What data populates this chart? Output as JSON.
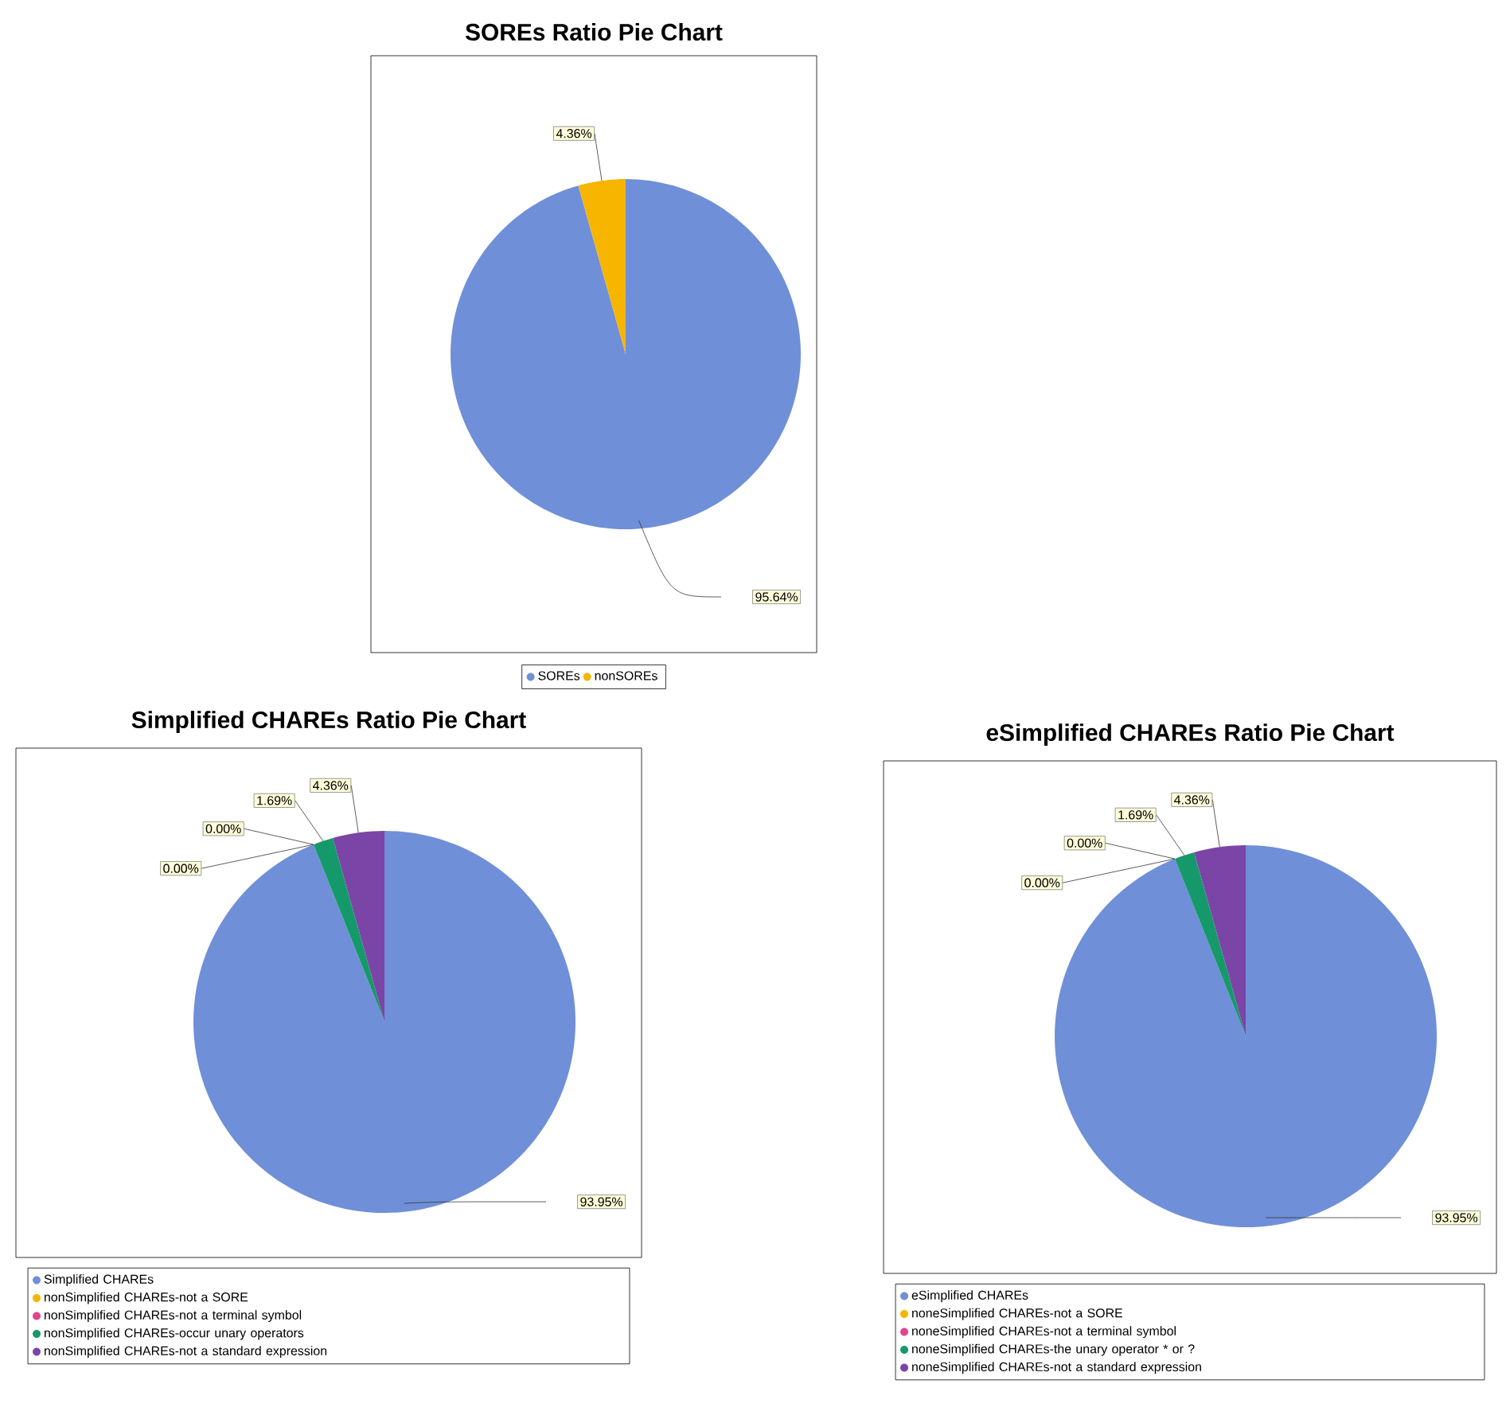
{
  "chart_data": [
    {
      "type": "pie",
      "title": "SOREs Ratio Pie Chart",
      "categories": [
        "SOREs",
        "nonSOREs"
      ],
      "values": [
        95.64,
        4.36
      ],
      "colors": [
        "#6f8fd8",
        "#f7b500"
      ],
      "value_labels": [
        "95.64%",
        "4.36%"
      ],
      "legend": "bottom"
    },
    {
      "type": "pie",
      "title": "Simplified CHAREs Ratio Pie Chart",
      "categories": [
        "Simplified CHAREs",
        "nonSimplified CHAREs-not a SORE",
        "nonSimplified CHAREs-not a terminal symbol",
        "nonSimplified CHAREs-occur unary operators",
        "nonSimplified CHAREs-not a standard expression"
      ],
      "values": [
        93.95,
        0.0,
        0.0,
        1.69,
        4.36
      ],
      "colors": [
        "#6f8fd8",
        "#f7b500",
        "#e0458f",
        "#16996a",
        "#7b45a8"
      ],
      "value_labels": [
        "93.95%",
        "0.00%",
        "0.00%",
        "1.69%",
        "4.36%"
      ],
      "legend": "bottom"
    },
    {
      "type": "pie",
      "title": "eSimplified CHAREs Ratio Pie Chart",
      "categories": [
        "eSimplified CHAREs",
        "noneSimplified CHAREs-not a SORE",
        "noneSimplified CHAREs-not a terminal symbol",
        "noneSimplified CHAREs-the unary operator * or ?",
        "noneSimplified CHAREs-not a standard expression"
      ],
      "values": [
        93.95,
        0.0,
        0.0,
        1.69,
        4.36
      ],
      "colors": [
        "#6f8fd8",
        "#f7b500",
        "#e0458f",
        "#16996a",
        "#7b45a8"
      ],
      "value_labels": [
        "93.95%",
        "0.00%",
        "0.00%",
        "1.69%",
        "4.36%"
      ],
      "legend": "bottom"
    }
  ]
}
